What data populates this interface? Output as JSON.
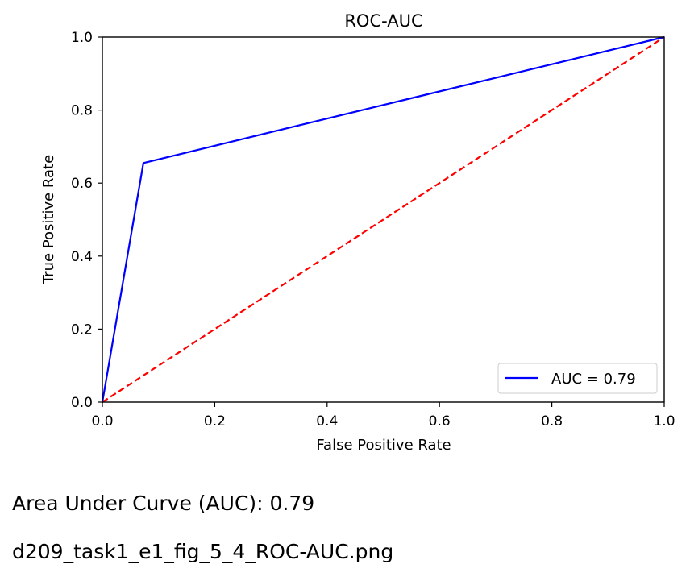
{
  "chart_data": {
    "type": "line",
    "title": "ROC-AUC",
    "xlabel": "False Positive Rate",
    "ylabel": "True Positive Rate",
    "xlim": [
      0,
      1
    ],
    "ylim": [
      0,
      1
    ],
    "xticks": [
      "0.0",
      "0.2",
      "0.4",
      "0.6",
      "0.8",
      "1.0"
    ],
    "yticks": [
      "0.0",
      "0.2",
      "0.4",
      "0.6",
      "0.8",
      "1.0"
    ],
    "grid": false,
    "legend_position": "lower-right",
    "series": [
      {
        "name": "AUC = 0.79",
        "color": "#0000ff",
        "style": "solid",
        "x": [
          0.0,
          0.073,
          1.0
        ],
        "y": [
          0.0,
          0.655,
          1.0
        ]
      },
      {
        "color": "#ff0000",
        "style": "dashed",
        "x": [
          0.0,
          1.0
        ],
        "y": [
          0.0,
          1.0
        ]
      }
    ]
  },
  "captions": {
    "auc_text": "Area Under Curve (AUC): 0.79",
    "filename": "d209_task1_e1_fig_5_4_ROC-AUC.png"
  }
}
